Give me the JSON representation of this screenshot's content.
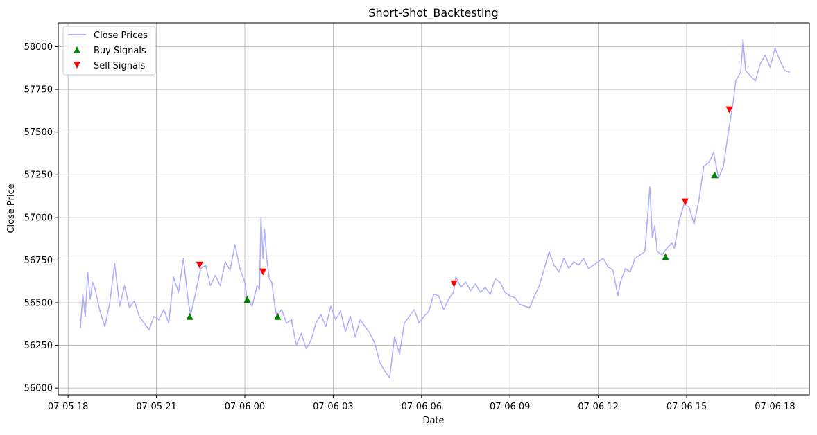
{
  "chart_data": {
    "type": "line",
    "title": "Short-Shot_Backtesting",
    "xlabel": "Date",
    "ylabel": "Close Price",
    "xlim": [
      "2024-07-05 17:40",
      "2024-07-06 19:10"
    ],
    "ylim": [
      55960,
      58140
    ],
    "x_ticks": [
      "07-05 18",
      "07-05 21",
      "07-06 00",
      "07-06 03",
      "07-06 06",
      "07-06 09",
      "07-06 12",
      "07-06 15",
      "07-06 18"
    ],
    "x_tick_values": [
      "2024-07-05 18:00",
      "2024-07-05 21:00",
      "2024-07-06 00:00",
      "2024-07-06 03:00",
      "2024-07-06 06:00",
      "2024-07-06 09:00",
      "2024-07-06 12:00",
      "2024-07-06 15:00",
      "2024-07-06 18:00"
    ],
    "y_ticks": [
      56000,
      56250,
      56500,
      56750,
      57000,
      57250,
      57500,
      57750,
      58000
    ],
    "grid": true,
    "legend_position": "top-left",
    "colors": {
      "close": "#b0b0ff",
      "buy": "#008000",
      "sell": "#ff0000"
    },
    "series": [
      {
        "name": "Close Prices",
        "type": "line",
        "color": "#b0b0ff",
        "points": [
          [
            "2024-07-05 18:25",
            56350
          ],
          [
            "2024-07-05 18:30",
            56550
          ],
          [
            "2024-07-05 18:35",
            56420
          ],
          [
            "2024-07-05 18:40",
            56680
          ],
          [
            "2024-07-05 18:45",
            56520
          ],
          [
            "2024-07-05 18:50",
            56620
          ],
          [
            "2024-07-05 18:55",
            56580
          ],
          [
            "2024-07-05 19:05",
            56450
          ],
          [
            "2024-07-05 19:15",
            56360
          ],
          [
            "2024-07-05 19:25",
            56500
          ],
          [
            "2024-07-05 19:35",
            56730
          ],
          [
            "2024-07-05 19:45",
            56480
          ],
          [
            "2024-07-05 19:55",
            56600
          ],
          [
            "2024-07-05 20:05",
            56470
          ],
          [
            "2024-07-05 20:15",
            56510
          ],
          [
            "2024-07-05 20:25",
            56420
          ],
          [
            "2024-07-05 20:35",
            56380
          ],
          [
            "2024-07-05 20:45",
            56340
          ],
          [
            "2024-07-05 20:55",
            56420
          ],
          [
            "2024-07-05 21:05",
            56400
          ],
          [
            "2024-07-05 21:15",
            56460
          ],
          [
            "2024-07-05 21:25",
            56380
          ],
          [
            "2024-07-05 21:35",
            56650
          ],
          [
            "2024-07-05 21:45",
            56560
          ],
          [
            "2024-07-05 21:55",
            56760
          ],
          [
            "2024-07-05 22:05",
            56500
          ],
          [
            "2024-07-05 22:10",
            56430
          ],
          [
            "2024-07-05 22:20",
            56560
          ],
          [
            "2024-07-05 22:30",
            56700
          ],
          [
            "2024-07-05 22:40",
            56720
          ],
          [
            "2024-07-05 22:50",
            56600
          ],
          [
            "2024-07-05 23:00",
            56660
          ],
          [
            "2024-07-05 23:10",
            56600
          ],
          [
            "2024-07-05 23:20",
            56740
          ],
          [
            "2024-07-05 23:30",
            56690
          ],
          [
            "2024-07-05 23:40",
            56840
          ],
          [
            "2024-07-05 23:50",
            56700
          ],
          [
            "2024-07-06 00:00",
            56620
          ],
          [
            "2024-07-06 00:05",
            56520
          ],
          [
            "2024-07-06 00:15",
            56480
          ],
          [
            "2024-07-06 00:25",
            56600
          ],
          [
            "2024-07-06 00:30",
            56580
          ],
          [
            "2024-07-06 00:33",
            57000
          ],
          [
            "2024-07-06 00:37",
            56760
          ],
          [
            "2024-07-06 00:40",
            56930
          ],
          [
            "2024-07-06 00:45",
            56750
          ],
          [
            "2024-07-06 00:50",
            56640
          ],
          [
            "2024-07-06 00:55",
            56620
          ],
          [
            "2024-07-06 01:00",
            56500
          ],
          [
            "2024-07-06 01:05",
            56420
          ],
          [
            "2024-07-06 01:15",
            56460
          ],
          [
            "2024-07-06 01:25",
            56380
          ],
          [
            "2024-07-06 01:35",
            56400
          ],
          [
            "2024-07-06 01:45",
            56250
          ],
          [
            "2024-07-06 01:55",
            56320
          ],
          [
            "2024-07-06 02:05",
            56230
          ],
          [
            "2024-07-06 02:15",
            56280
          ],
          [
            "2024-07-06 02:25",
            56380
          ],
          [
            "2024-07-06 02:35",
            56430
          ],
          [
            "2024-07-06 02:45",
            56360
          ],
          [
            "2024-07-06 02:55",
            56480
          ],
          [
            "2024-07-06 03:05",
            56400
          ],
          [
            "2024-07-06 03:15",
            56450
          ],
          [
            "2024-07-06 03:25",
            56330
          ],
          [
            "2024-07-06 03:35",
            56420
          ],
          [
            "2024-07-06 03:45",
            56300
          ],
          [
            "2024-07-06 03:55",
            56400
          ],
          [
            "2024-07-06 04:05",
            56360
          ],
          [
            "2024-07-06 04:15",
            56320
          ],
          [
            "2024-07-06 04:25",
            56260
          ],
          [
            "2024-07-06 04:35",
            56150
          ],
          [
            "2024-07-06 04:45",
            56100
          ],
          [
            "2024-07-06 04:55",
            56060
          ],
          [
            "2024-07-06 05:05",
            56300
          ],
          [
            "2024-07-06 05:15",
            56200
          ],
          [
            "2024-07-06 05:25",
            56380
          ],
          [
            "2024-07-06 05:35",
            56420
          ],
          [
            "2024-07-06 05:45",
            56460
          ],
          [
            "2024-07-06 05:55",
            56380
          ],
          [
            "2024-07-06 06:05",
            56420
          ],
          [
            "2024-07-06 06:15",
            56450
          ],
          [
            "2024-07-06 06:25",
            56550
          ],
          [
            "2024-07-06 06:35",
            56540
          ],
          [
            "2024-07-06 06:45",
            56460
          ],
          [
            "2024-07-06 06:55",
            56520
          ],
          [
            "2024-07-06 07:05",
            56560
          ],
          [
            "2024-07-06 07:10",
            56650
          ],
          [
            "2024-07-06 07:20",
            56590
          ],
          [
            "2024-07-06 07:30",
            56620
          ],
          [
            "2024-07-06 07:40",
            56570
          ],
          [
            "2024-07-06 07:50",
            56610
          ],
          [
            "2024-07-06 08:00",
            56560
          ],
          [
            "2024-07-06 08:10",
            56590
          ],
          [
            "2024-07-06 08:20",
            56550
          ],
          [
            "2024-07-06 08:30",
            56640
          ],
          [
            "2024-07-06 08:40",
            56620
          ],
          [
            "2024-07-06 08:50",
            56560
          ],
          [
            "2024-07-06 09:00",
            56540
          ],
          [
            "2024-07-06 09:10",
            56530
          ],
          [
            "2024-07-06 09:20",
            56490
          ],
          [
            "2024-07-06 09:30",
            56480
          ],
          [
            "2024-07-06 09:40",
            56470
          ],
          [
            "2024-07-06 09:50",
            56540
          ],
          [
            "2024-07-06 10:00",
            56600
          ],
          [
            "2024-07-06 10:10",
            56700
          ],
          [
            "2024-07-06 10:20",
            56800
          ],
          [
            "2024-07-06 10:30",
            56720
          ],
          [
            "2024-07-06 10:40",
            56680
          ],
          [
            "2024-07-06 10:50",
            56760
          ],
          [
            "2024-07-06 11:00",
            56700
          ],
          [
            "2024-07-06 11:10",
            56740
          ],
          [
            "2024-07-06 11:20",
            56720
          ],
          [
            "2024-07-06 11:30",
            56760
          ],
          [
            "2024-07-06 11:40",
            56700
          ],
          [
            "2024-07-06 11:50",
            56720
          ],
          [
            "2024-07-06 12:00",
            56740
          ],
          [
            "2024-07-06 12:10",
            56760
          ],
          [
            "2024-07-06 12:20",
            56710
          ],
          [
            "2024-07-06 12:30",
            56690
          ],
          [
            "2024-07-06 12:40",
            56540
          ],
          [
            "2024-07-06 12:45",
            56620
          ],
          [
            "2024-07-06 12:55",
            56700
          ],
          [
            "2024-07-06 13:05",
            56680
          ],
          [
            "2024-07-06 13:15",
            56760
          ],
          [
            "2024-07-06 13:25",
            56780
          ],
          [
            "2024-07-06 13:35",
            56800
          ],
          [
            "2024-07-06 13:45",
            57180
          ],
          [
            "2024-07-06 13:50",
            56880
          ],
          [
            "2024-07-06 13:55",
            56950
          ],
          [
            "2024-07-06 14:00",
            56800
          ],
          [
            "2024-07-06 14:10",
            56780
          ],
          [
            "2024-07-06 14:20",
            56820
          ],
          [
            "2024-07-06 14:30",
            56850
          ],
          [
            "2024-07-06 14:35",
            56820
          ],
          [
            "2024-07-06 14:45",
            56980
          ],
          [
            "2024-07-06 14:55",
            57080
          ],
          [
            "2024-07-06 15:05",
            57060
          ],
          [
            "2024-07-06 15:15",
            56960
          ],
          [
            "2024-07-06 15:25",
            57100
          ],
          [
            "2024-07-06 15:35",
            57300
          ],
          [
            "2024-07-06 15:45",
            57320
          ],
          [
            "2024-07-06 15:55",
            57380
          ],
          [
            "2024-07-06 16:05",
            57230
          ],
          [
            "2024-07-06 16:15",
            57300
          ],
          [
            "2024-07-06 16:25",
            57500
          ],
          [
            "2024-07-06 16:35",
            57680
          ],
          [
            "2024-07-06 16:40",
            57800
          ],
          [
            "2024-07-06 16:50",
            57850
          ],
          [
            "2024-07-06 16:55",
            58040
          ],
          [
            "2024-07-06 17:00",
            57860
          ],
          [
            "2024-07-06 17:10",
            57830
          ],
          [
            "2024-07-06 17:20",
            57800
          ],
          [
            "2024-07-06 17:30",
            57900
          ],
          [
            "2024-07-06 17:40",
            57950
          ],
          [
            "2024-07-06 17:50",
            57880
          ],
          [
            "2024-07-06 18:00",
            57990
          ],
          [
            "2024-07-06 18:10",
            57920
          ],
          [
            "2024-07-06 18:20",
            57860
          ],
          [
            "2024-07-06 18:30",
            57850
          ]
        ]
      },
      {
        "name": "Buy Signals",
        "type": "scatter",
        "marker": "triangle-up",
        "color": "#008000",
        "points": [
          [
            "2024-07-05 22:08",
            56420
          ],
          [
            "2024-07-06 00:05",
            56520
          ],
          [
            "2024-07-06 01:07",
            56420
          ],
          [
            "2024-07-06 14:17",
            56770
          ],
          [
            "2024-07-06 15:57",
            57250
          ]
        ]
      },
      {
        "name": "Sell Signals",
        "type": "scatter",
        "marker": "triangle-down",
        "color": "#ff0000",
        "points": [
          [
            "2024-07-05 22:28",
            56720
          ],
          [
            "2024-07-06 00:37",
            56680
          ],
          [
            "2024-07-06 07:06",
            56610
          ],
          [
            "2024-07-06 14:57",
            57090
          ],
          [
            "2024-07-06 16:27",
            57630
          ]
        ]
      }
    ]
  }
}
